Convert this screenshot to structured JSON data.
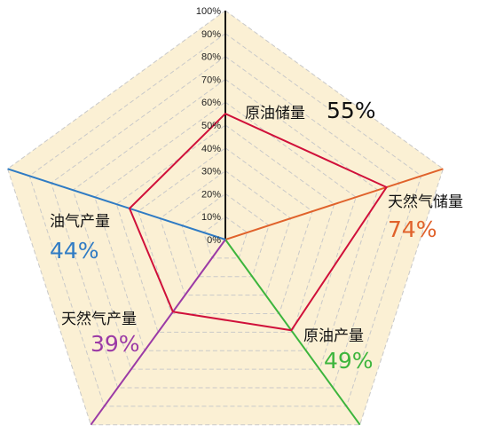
{
  "chart_data": {
    "type": "radar",
    "title": "",
    "rlim": [
      0,
      100
    ],
    "ticks": [
      "0%",
      "10%",
      "20%",
      "30%",
      "40%",
      "50%",
      "60%",
      "70%",
      "80%",
      "90%",
      "100%"
    ],
    "grid": true,
    "axes": [
      {
        "label": "原油储量",
        "value": 55,
        "value_label": "55%",
        "color": "#111111"
      },
      {
        "label": "天然气储量",
        "value": 74,
        "value_label": "74%",
        "color": "#E0622B"
      },
      {
        "label": "原油产量",
        "value": 49,
        "value_label": "49%",
        "color": "#3DB53D"
      },
      {
        "label": "天然气产量",
        "value": 39,
        "value_label": "39%",
        "color": "#9B3AA6"
      },
      {
        "label": "油气产量",
        "value": 44,
        "value_label": "44%",
        "color": "#2F7BC4"
      }
    ],
    "series": [
      {
        "values": [
          55,
          74,
          49,
          39,
          44
        ],
        "color": "#D0103A"
      }
    ],
    "colors": {
      "background_fill": "#FBF0D4",
      "grid_line": "#C9C9C9",
      "data_line": "#D0103A"
    }
  }
}
